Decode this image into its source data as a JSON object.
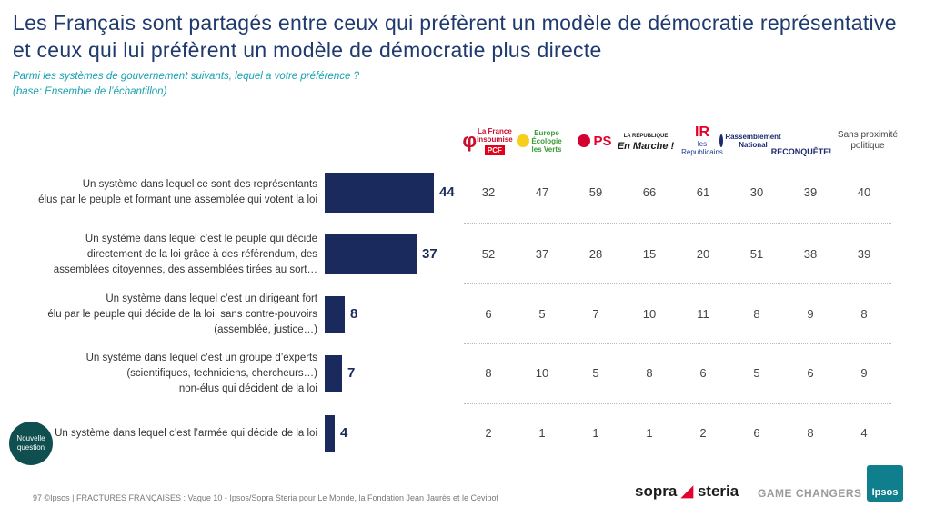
{
  "title": "Les Français sont partagés entre ceux qui préfèrent un modèle de démocratie représentative et ceux qui lui préfèrent un modèle de démocratie plus directe",
  "question": "Parmi les systèmes de gouvernement suivants, lequel a votre préférence ?",
  "base": "(base: Ensemble de l’échantillon)",
  "parties": [
    {
      "name": "La France insoumise / PCF",
      "color": "#c8102e"
    },
    {
      "name": "Europe Écologie les Verts",
      "color": "#3a9a3a"
    },
    {
      "name": "PS",
      "color": "#e4002b"
    },
    {
      "name": "LA RÉPUBLIQUE En Marche !",
      "color": "#1b1b1b"
    },
    {
      "name": "les Républicains",
      "color": "#1d3f8f"
    },
    {
      "name": "Rassemblement National / RECONQUÊTE!",
      "color": "#1b2a6c"
    },
    {
      "name": "",
      "color": ""
    },
    {
      "name": "Sans proximité politique",
      "color": "#444444"
    }
  ],
  "chart_data": {
    "type": "bar",
    "orientation": "horizontal",
    "categories": [
      "Un système dans lequel ce sont des représentants élus par le peuple et formant une assemblée qui votent la loi",
      "Un système dans lequel c’est le peuple qui décide directement de la loi grâce à des référendum, des assemblées citoyennes, des assemblées tirées au sort…",
      "Un système dans lequel c’est un dirigeant fort élu par le peuple qui décide de la loi, sans contre-pouvoirs (assemblée, justice…)",
      "Un système dans lequel c’est un groupe d’experts (scientifiques, techniciens, chercheurs…) non-élus qui décident de la loi",
      "Un système dans lequel c’est l’armée qui décide de la loi"
    ],
    "label_lines": [
      [
        "Un système dans lequel ce sont des représentants",
        "élus par le peuple et formant une assemblée qui votent la loi"
      ],
      [
        "Un système dans lequel c’est le peuple qui décide",
        "directement de la loi grâce à des référendum, des",
        "assemblées citoyennes, des assemblées tirées au sort…"
      ],
      [
        "Un système dans lequel c’est un dirigeant fort",
        "élu par le peuple qui décide de la loi, sans contre-pouvoirs",
        "(assemblée, justice…)"
      ],
      [
        "Un système dans lequel c’est un groupe d’experts",
        "(scientifiques, techniciens, chercheurs…)",
        "non-élus qui décident de la loi"
      ],
      [
        "Un système dans lequel c’est l’armée qui décide de la loi"
      ]
    ],
    "values": [
      44,
      37,
      8,
      7,
      4
    ],
    "breakdown_columns": [
      "La France insoumise / PCF",
      "Europe Écologie les Verts",
      "PS",
      "LA RÉPUBLIQUE En Marche !",
      "les Républicains",
      "Rassemblement National",
      "RECONQUÊTE!",
      "Sans proximité politique"
    ],
    "breakdown": [
      [
        32,
        47,
        59,
        66,
        61,
        30,
        39,
        40
      ],
      [
        52,
        37,
        28,
        15,
        20,
        51,
        38,
        39
      ],
      [
        6,
        5,
        7,
        10,
        11,
        8,
        9,
        8
      ],
      [
        8,
        10,
        5,
        8,
        6,
        5,
        6,
        9
      ],
      [
        2,
        1,
        1,
        1,
        2,
        6,
        8,
        4
      ]
    ],
    "bar_color": "#1b2a5c"
  },
  "badge": "Nouvelle question",
  "footer": "97      ©Ipsos | FRACTURES FRANÇAISES : Vague 10 - Ipsos/Sopra Steria pour Le Monde, la Fondation Jean Jaurès et le Cevipof",
  "brand": {
    "sopra": "sopra",
    "steria": "steria",
    "tagline": "GAME CHANGERS",
    "ipsos": "Ipsos"
  }
}
